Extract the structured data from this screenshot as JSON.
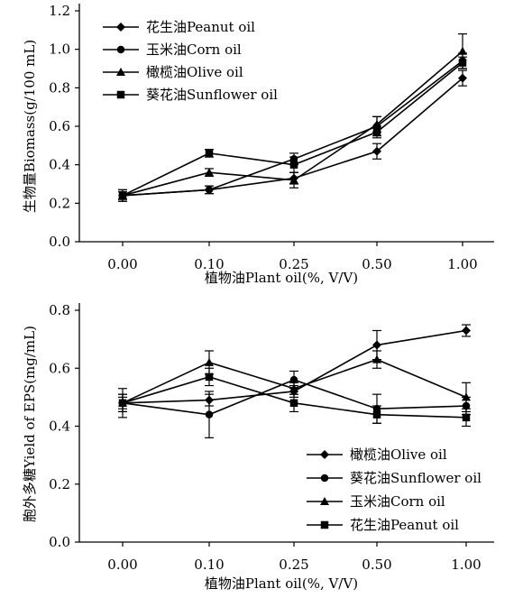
{
  "chart_data": [
    {
      "type": "line",
      "xlabel": "植物油Plant oil(%, V/V)",
      "ylabel": "生物量Biomass(g/100 mL)",
      "categories": [
        "0.00",
        "0.10",
        "0.25",
        "0.50",
        "1.00"
      ],
      "yticks": [
        "0.0",
        "0.2",
        "0.4",
        "0.6",
        "0.8",
        "1.0",
        "1.2"
      ],
      "ylim": [
        0,
        1.2
      ],
      "grid": false,
      "legend_position": "top-left",
      "series": [
        {
          "name": "花生油Peanut oil",
          "marker": "diamond",
          "values": [
            0.24,
            0.27,
            0.33,
            0.47,
            0.85
          ],
          "errors": [
            0.02,
            0.02,
            0.03,
            0.04,
            0.04
          ]
        },
        {
          "name": "玉米油Corn oil",
          "marker": "circle",
          "values": [
            0.24,
            0.27,
            0.43,
            0.6,
            0.94
          ],
          "errors": [
            0.02,
            0.02,
            0.03,
            0.05,
            0.04
          ]
        },
        {
          "name": "橄榄油Olive oil",
          "marker": "triangle",
          "values": [
            0.24,
            0.36,
            0.32,
            0.61,
            0.99
          ],
          "errors": [
            0.03,
            0.02,
            0.04,
            0.04,
            0.09
          ]
        },
        {
          "name": "葵花油Sunflower oil",
          "marker": "square",
          "values": [
            0.24,
            0.46,
            0.4,
            0.57,
            0.93
          ],
          "errors": [
            0.03,
            0.02,
            0.04,
            0.03,
            0.03
          ]
        }
      ]
    },
    {
      "type": "line",
      "xlabel": "植物油Plant oil(%, V/V)",
      "ylabel": "胞外多糖Yield of EPS(mg/mL)",
      "categories": [
        "0.00",
        "0.10",
        "0.25",
        "0.50",
        "1.00"
      ],
      "yticks": [
        "0.0",
        "0.2",
        "0.4",
        "0.6",
        "0.8"
      ],
      "ylim": [
        0,
        0.8
      ],
      "grid": false,
      "legend_position": "bottom-right",
      "series": [
        {
          "name": "橄榄油Olive oil",
          "marker": "diamond",
          "values": [
            0.48,
            0.49,
            0.52,
            0.68,
            0.73
          ],
          "errors": [
            0.02,
            0.02,
            0.02,
            0.05,
            0.02
          ]
        },
        {
          "name": "葵花油Sunflower oil",
          "marker": "circle",
          "values": [
            0.48,
            0.44,
            0.56,
            0.46,
            0.47
          ],
          "errors": [
            0.03,
            0.08,
            0.03,
            0.05,
            0.03
          ]
        },
        {
          "name": "玉米油Corn oil",
          "marker": "triangle",
          "values": [
            0.48,
            0.62,
            0.53,
            0.63,
            0.5
          ],
          "errors": [
            0.05,
            0.04,
            0.02,
            0.03,
            0.05
          ]
        },
        {
          "name": "花生油Peanut oil",
          "marker": "square",
          "values": [
            0.48,
            0.57,
            0.48,
            0.44,
            0.43
          ],
          "errors": [
            0.03,
            0.03,
            0.03,
            0.03,
            0.03
          ]
        }
      ]
    }
  ]
}
